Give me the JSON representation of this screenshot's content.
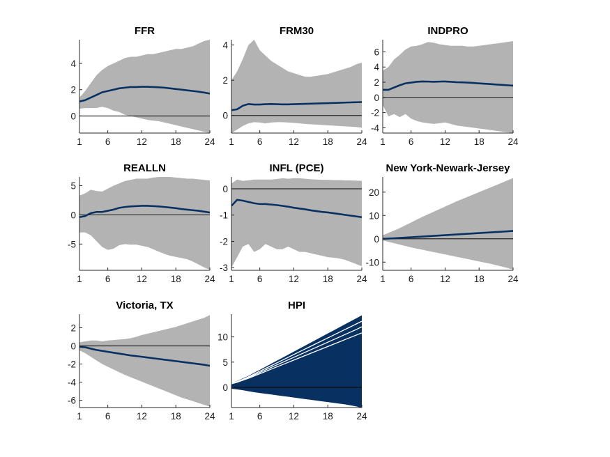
{
  "colors": {
    "band": "#b3b3b3",
    "irf": "#083162",
    "zero": "#262626",
    "axis": "#262626"
  },
  "chart_data": [
    {
      "type": "area",
      "title": "FFR",
      "x": [
        1,
        2,
        3,
        4,
        5,
        6,
        7,
        8,
        9,
        10,
        11,
        12,
        13,
        14,
        15,
        16,
        17,
        18,
        19,
        20,
        21,
        22,
        23,
        24
      ],
      "xticks": [
        1,
        6,
        12,
        18,
        24
      ],
      "xlim": [
        1,
        24
      ],
      "ylim": [
        -1.3,
        5.8
      ],
      "yticks": [
        0,
        2,
        4
      ],
      "series": [
        {
          "role": "irf",
          "values": [
            1.1,
            1.2,
            1.4,
            1.6,
            1.8,
            1.9,
            2.0,
            2.1,
            2.15,
            2.2,
            2.2,
            2.22,
            2.22,
            2.2,
            2.18,
            2.15,
            2.1,
            2.05,
            2.0,
            1.95,
            1.9,
            1.85,
            1.78,
            1.7
          ]
        },
        {
          "role": "upper",
          "values": [
            1.4,
            1.9,
            2.5,
            3.1,
            3.5,
            3.8,
            4.0,
            4.2,
            4.4,
            4.5,
            4.5,
            4.6,
            4.7,
            4.7,
            4.8,
            4.9,
            5.0,
            5.1,
            5.1,
            5.2,
            5.3,
            5.5,
            5.7,
            5.8
          ]
        },
        {
          "role": "lower",
          "values": [
            0.55,
            0.6,
            0.6,
            0.6,
            0.7,
            0.6,
            0.4,
            0.3,
            0.1,
            0.0,
            -0.1,
            -0.2,
            -0.3,
            -0.35,
            -0.4,
            -0.5,
            -0.6,
            -0.7,
            -0.8,
            -0.9,
            -1.0,
            -1.1,
            -1.2,
            -1.3
          ]
        }
      ]
    },
    {
      "type": "area",
      "title": "FRM30",
      "x": [
        1,
        2,
        3,
        4,
        5,
        6,
        7,
        8,
        9,
        10,
        11,
        12,
        13,
        14,
        15,
        16,
        17,
        18,
        19,
        20,
        21,
        22,
        23,
        24
      ],
      "xticks": [
        1,
        6,
        12,
        18,
        24
      ],
      "xlim": [
        1,
        24
      ],
      "ylim": [
        -1,
        4.3
      ],
      "yticks": [
        0,
        2,
        4
      ],
      "series": [
        {
          "role": "irf",
          "values": [
            0.3,
            0.35,
            0.55,
            0.65,
            0.62,
            0.62,
            0.64,
            0.65,
            0.64,
            0.63,
            0.63,
            0.64,
            0.65,
            0.66,
            0.67,
            0.68,
            0.69,
            0.7,
            0.71,
            0.72,
            0.73,
            0.74,
            0.75,
            0.76
          ]
        },
        {
          "role": "upper",
          "values": [
            2.0,
            2.5,
            3.2,
            4.0,
            4.3,
            3.7,
            3.4,
            3.1,
            2.9,
            2.7,
            2.5,
            2.4,
            2.3,
            2.2,
            2.2,
            2.25,
            2.3,
            2.35,
            2.45,
            2.55,
            2.65,
            2.75,
            2.9,
            3.0
          ]
        },
        {
          "role": "lower",
          "values": [
            -1.0,
            -0.8,
            -0.6,
            -0.45,
            -0.38,
            -0.4,
            -0.45,
            -0.4,
            -0.38,
            -0.38,
            -0.4,
            -0.42,
            -0.45,
            -0.48,
            -0.5,
            -0.52,
            -0.54,
            -0.56,
            -0.58,
            -0.6,
            -0.62,
            -0.64,
            -0.66,
            -0.7
          ]
        }
      ]
    },
    {
      "type": "area",
      "title": "INDPRO",
      "x": [
        1,
        2,
        3,
        4,
        5,
        6,
        7,
        8,
        9,
        10,
        11,
        12,
        13,
        14,
        15,
        16,
        17,
        18,
        19,
        20,
        21,
        22,
        23,
        24
      ],
      "xticks": [
        1,
        6,
        12,
        18,
        24
      ],
      "xlim": [
        1,
        24
      ],
      "ylim": [
        -4.7,
        7.6
      ],
      "yticks": [
        -4,
        -2,
        0,
        2,
        4,
        6
      ],
      "series": [
        {
          "role": "irf",
          "values": [
            1.0,
            1.0,
            1.3,
            1.6,
            1.85,
            1.95,
            2.05,
            2.1,
            2.08,
            2.05,
            2.08,
            2.1,
            2.05,
            2.0,
            1.98,
            1.95,
            1.9,
            1.85,
            1.8,
            1.75,
            1.7,
            1.65,
            1.6,
            1.55
          ]
        },
        {
          "role": "upper",
          "values": [
            3.5,
            4.0,
            5.0,
            5.6,
            6.3,
            6.7,
            6.8,
            7.0,
            7.3,
            7.2,
            7.0,
            6.9,
            6.8,
            6.8,
            6.8,
            6.7,
            6.7,
            6.8,
            6.9,
            7.0,
            7.1,
            7.2,
            7.3,
            7.4
          ]
        },
        {
          "role": "lower",
          "values": [
            -1.0,
            -2.5,
            -2.2,
            -2.6,
            -2.2,
            -2.8,
            -3.1,
            -3.3,
            -3.4,
            -3.5,
            -3.4,
            -3.3,
            -3.5,
            -3.7,
            -3.8,
            -3.9,
            -4.0,
            -4.1,
            -4.2,
            -4.3,
            -4.4,
            -4.5,
            -4.6,
            -4.7
          ]
        }
      ]
    },
    {
      "type": "area",
      "title": "REALLN",
      "x": [
        1,
        2,
        3,
        4,
        5,
        6,
        7,
        8,
        9,
        10,
        11,
        12,
        13,
        14,
        15,
        16,
        17,
        18,
        19,
        20,
        21,
        22,
        23,
        24
      ],
      "xticks": [
        1,
        6,
        12,
        18,
        24
      ],
      "xlim": [
        1,
        24
      ],
      "ylim": [
        -9.5,
        6.5
      ],
      "yticks": [
        -5,
        0,
        5
      ],
      "series": [
        {
          "role": "irf",
          "values": [
            -0.4,
            -0.2,
            0.3,
            0.5,
            0.5,
            0.7,
            0.9,
            1.2,
            1.35,
            1.45,
            1.5,
            1.55,
            1.55,
            1.5,
            1.45,
            1.35,
            1.25,
            1.15,
            1.0,
            0.9,
            0.8,
            0.7,
            0.55,
            0.4
          ]
        },
        {
          "role": "upper",
          "values": [
            3.3,
            3.7,
            4.3,
            4.1,
            4.0,
            4.5,
            5.0,
            5.4,
            5.8,
            6.0,
            6.2,
            6.2,
            6.2,
            6.4,
            6.5,
            6.5,
            6.5,
            6.4,
            6.3,
            6.2,
            6.2,
            6.1,
            6.0,
            5.9
          ]
        },
        {
          "role": "lower",
          "values": [
            -3.0,
            -3.0,
            -3.5,
            -4.5,
            -5.5,
            -6.0,
            -5.8,
            -5.2,
            -5.0,
            -5.1,
            -5.1,
            -5.3,
            -5.5,
            -5.9,
            -6.3,
            -6.7,
            -7.0,
            -7.2,
            -7.4,
            -7.6,
            -8.0,
            -8.5,
            -9.0,
            -9.4
          ]
        }
      ]
    },
    {
      "type": "area",
      "title": "INFL (PCE)",
      "x": [
        1,
        2,
        3,
        4,
        5,
        6,
        7,
        8,
        9,
        10,
        11,
        12,
        13,
        14,
        15,
        16,
        17,
        18,
        19,
        20,
        21,
        22,
        23,
        24
      ],
      "xticks": [
        1,
        6,
        12,
        18,
        24
      ],
      "xlim": [
        1,
        24
      ],
      "ylim": [
        -3.1,
        0.45
      ],
      "yticks": [
        -3,
        -2,
        -1,
        0
      ],
      "series": [
        {
          "role": "irf",
          "values": [
            -0.65,
            -0.42,
            -0.45,
            -0.5,
            -0.55,
            -0.58,
            -0.58,
            -0.6,
            -0.62,
            -0.65,
            -0.68,
            -0.72,
            -0.75,
            -0.78,
            -0.82,
            -0.85,
            -0.88,
            -0.9,
            -0.93,
            -0.96,
            -0.99,
            -1.02,
            -1.05,
            -1.08
          ]
        },
        {
          "role": "upper",
          "values": [
            0.2,
            0.35,
            0.3,
            0.32,
            0.35,
            0.35,
            0.35,
            0.35,
            0.37,
            0.4,
            0.38,
            0.4,
            0.4,
            0.38,
            0.36,
            0.35,
            0.34,
            0.34,
            0.33,
            0.33,
            0.32,
            0.32,
            0.31,
            0.3
          ]
        },
        {
          "role": "lower",
          "values": [
            -3.0,
            -2.6,
            -2.2,
            -2.1,
            -2.4,
            -2.3,
            -2.1,
            -2.2,
            -2.3,
            -2.3,
            -2.2,
            -2.3,
            -2.4,
            -2.4,
            -2.45,
            -2.5,
            -2.55,
            -2.6,
            -2.62,
            -2.65,
            -2.7,
            -2.78,
            -2.86,
            -2.95
          ]
        }
      ]
    },
    {
      "type": "area",
      "title": "New York-Newark-Jersey",
      "x": [
        1,
        2,
        3,
        4,
        5,
        6,
        7,
        8,
        9,
        10,
        11,
        12,
        13,
        14,
        15,
        16,
        17,
        18,
        19,
        20,
        21,
        22,
        23,
        24
      ],
      "xticks": [
        1,
        6,
        12,
        18,
        24
      ],
      "xlim": [
        1,
        24
      ],
      "ylim": [
        -13.5,
        26.5
      ],
      "yticks": [
        -10,
        0,
        10,
        20
      ],
      "series": [
        {
          "role": "irf",
          "values": [
            0,
            0.1,
            0.2,
            0.35,
            0.5,
            0.65,
            0.8,
            0.95,
            1.1,
            1.25,
            1.4,
            1.55,
            1.7,
            1.85,
            2.0,
            2.15,
            2.3,
            2.45,
            2.6,
            2.75,
            2.9,
            3.05,
            3.2,
            3.4
          ]
        },
        {
          "role": "upper",
          "values": [
            1.5,
            2.5,
            3.5,
            4.6,
            5.8,
            7.0,
            8.2,
            9.4,
            10.5,
            11.6,
            12.7,
            13.8,
            14.9,
            16.0,
            17.0,
            18.0,
            19.0,
            20.0,
            21.0,
            22.0,
            23.0,
            24.0,
            25.0,
            26.0
          ]
        },
        {
          "role": "lower",
          "values": [
            -0.7,
            -1.3,
            -1.9,
            -2.5,
            -3.1,
            -3.7,
            -4.2,
            -4.7,
            -5.2,
            -5.7,
            -6.2,
            -6.7,
            -7.2,
            -7.7,
            -8.2,
            -8.7,
            -9.2,
            -9.7,
            -10.2,
            -10.7,
            -11.3,
            -11.9,
            -12.5,
            -13.2
          ]
        }
      ]
    },
    {
      "type": "area",
      "title": "Victoria, TX",
      "x": [
        1,
        2,
        3,
        4,
        5,
        6,
        7,
        8,
        9,
        10,
        11,
        12,
        13,
        14,
        15,
        16,
        17,
        18,
        19,
        20,
        21,
        22,
        23,
        24
      ],
      "xticks": [
        1,
        6,
        12,
        18,
        24
      ],
      "xlim": [
        1,
        24
      ],
      "ylim": [
        -6.8,
        3.5
      ],
      "yticks": [
        -6,
        -4,
        -2,
        0,
        2
      ],
      "series": [
        {
          "role": "irf",
          "values": [
            -0.1,
            -0.15,
            -0.3,
            -0.45,
            -0.55,
            -0.65,
            -0.75,
            -0.85,
            -0.95,
            -1.05,
            -1.12,
            -1.2,
            -1.28,
            -1.36,
            -1.44,
            -1.52,
            -1.6,
            -1.68,
            -1.76,
            -1.84,
            -1.92,
            -2.0,
            -2.08,
            -2.2
          ]
        },
        {
          "role": "upper",
          "values": [
            0.4,
            0.5,
            0.6,
            0.6,
            0.5,
            0.6,
            0.65,
            0.7,
            0.75,
            0.85,
            1.0,
            1.2,
            1.35,
            1.5,
            1.65,
            1.8,
            1.95,
            2.1,
            2.3,
            2.5,
            2.7,
            2.9,
            3.1,
            3.4
          ]
        },
        {
          "role": "lower",
          "values": [
            -0.5,
            -0.8,
            -1.2,
            -1.6,
            -2.0,
            -2.3,
            -2.6,
            -2.9,
            -3.2,
            -3.45,
            -3.7,
            -3.95,
            -4.2,
            -4.45,
            -4.7,
            -4.95,
            -5.2,
            -5.45,
            -5.7,
            -5.9,
            -6.1,
            -6.3,
            -6.5,
            -6.7
          ]
        }
      ]
    },
    {
      "type": "line",
      "title": "HPI",
      "x": [
        1,
        2,
        3,
        4,
        5,
        6,
        7,
        8,
        9,
        10,
        11,
        12,
        13,
        14,
        15,
        16,
        17,
        18,
        19,
        20,
        21,
        22,
        23,
        24
      ],
      "xticks": [
        1,
        6,
        12,
        18,
        24
      ],
      "xlim": [
        1,
        24
      ],
      "ylim": [
        -4,
        14.5
      ],
      "yticks": [
        0,
        5,
        10
      ],
      "series": [
        {
          "role": "fan-upper",
          "values": [
            0.8,
            1.2,
            1.7,
            2.2,
            2.8,
            3.4,
            4.0,
            4.6,
            5.2,
            5.8,
            6.4,
            7.0,
            7.6,
            8.2,
            8.8,
            9.4,
            10.0,
            10.6,
            11.2,
            11.8,
            12.4,
            13.0,
            13.6,
            14.2
          ]
        },
        {
          "role": "fan-lower",
          "values": [
            -0.2,
            -0.35,
            -0.5,
            -0.7,
            -0.9,
            -1.05,
            -1.2,
            -1.35,
            -1.5,
            -1.65,
            -1.8,
            -1.95,
            -2.1,
            -2.25,
            -2.4,
            -2.55,
            -2.7,
            -2.85,
            -3.0,
            -3.15,
            -3.3,
            -3.5,
            -3.7,
            -4.0
          ]
        },
        {
          "role": "fan-high-1",
          "values": [
            0.8,
            1.15,
            1.6,
            2.1,
            2.65,
            3.2,
            3.75,
            4.3,
            4.85,
            5.4,
            5.95,
            6.5,
            7.05,
            7.6,
            8.15,
            8.7,
            9.25,
            9.8,
            10.35,
            10.9,
            11.45,
            12.0,
            12.55,
            13.1
          ]
        },
        {
          "role": "fan-high-2",
          "values": [
            0.75,
            1.1,
            1.5,
            1.95,
            2.45,
            2.95,
            3.45,
            3.95,
            4.45,
            4.95,
            5.45,
            5.95,
            6.45,
            6.95,
            7.45,
            7.95,
            8.45,
            8.95,
            9.45,
            9.95,
            10.45,
            10.95,
            11.45,
            12.0
          ]
        },
        {
          "role": "fan-high-3",
          "values": [
            0.7,
            1.0,
            1.4,
            1.8,
            2.25,
            2.7,
            3.15,
            3.6,
            4.05,
            4.5,
            4.95,
            5.4,
            5.85,
            6.3,
            6.75,
            7.2,
            7.65,
            8.1,
            8.55,
            9.0,
            9.45,
            9.9,
            10.35,
            10.8
          ]
        }
      ]
    }
  ]
}
